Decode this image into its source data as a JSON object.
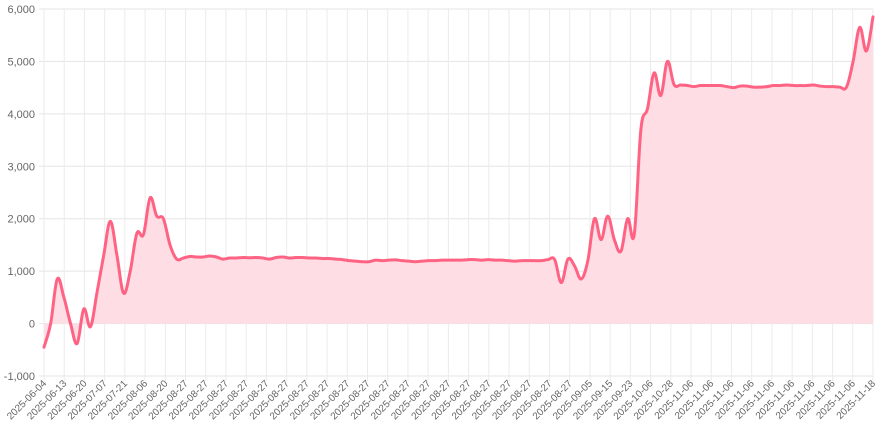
{
  "chart_data": {
    "type": "area",
    "title": "",
    "xlabel": "",
    "ylabel": "",
    "ylim": [
      -1000,
      6000
    ],
    "yticks": [
      -1000,
      0,
      1000,
      2000,
      3000,
      4000,
      5000,
      6000
    ],
    "ytick_labels": [
      "-1,000",
      "0",
      "1,000",
      "2,000",
      "3,000",
      "4,000",
      "5,000",
      "6,000"
    ],
    "grid": true,
    "legend": "none",
    "x_labels": [
      "2025-06-04",
      "2025-06-13",
      "2025-06-20",
      "2025-07-07",
      "2025-07-21",
      "2025-08-06",
      "2025-08-20",
      "2025-08-27",
      "2025-08-27",
      "2025-08-27",
      "2025-08-27",
      "2025-08-27",
      "2025-08-27",
      "2025-08-27",
      "2025-08-27",
      "2025-08-27",
      "2025-08-27",
      "2025-08-27",
      "2025-08-27",
      "2025-08-27",
      "2025-08-27",
      "2025-08-27",
      "2025-08-27",
      "2025-08-27",
      "2025-08-27",
      "2025-08-27",
      "2025-08-27",
      "2025-09-05",
      "2025-09-15",
      "2025-09-23",
      "2025-10-06",
      "2025-10-28",
      "2025-11-06",
      "2025-11-06",
      "2025-11-06",
      "2025-11-06",
      "2025-11-06",
      "2025-11-06",
      "2025-11-06",
      "2025-11-06",
      "2025-11-06",
      "2025-11-18"
    ],
    "series": [
      {
        "color": "#ff6384",
        "fill": "#ffdde4",
        "values": [
          -450,
          0,
          850,
          500,
          0,
          -380,
          280,
          -60,
          600,
          1300,
          1950,
          1300,
          580,
          1000,
          1720,
          1700,
          2400,
          2050,
          2000,
          1500,
          1230,
          1250,
          1280,
          1270,
          1270,
          1290,
          1270,
          1230,
          1250,
          1250,
          1260,
          1255,
          1260,
          1250,
          1230,
          1260,
          1270,
          1250,
          1260,
          1260,
          1250,
          1250,
          1240,
          1240,
          1230,
          1220,
          1200,
          1190,
          1180,
          1180,
          1210,
          1200,
          1210,
          1215,
          1200,
          1190,
          1180,
          1190,
          1200,
          1200,
          1210,
          1210,
          1210,
          1210,
          1220,
          1220,
          1210,
          1220,
          1210,
          1210,
          1200,
          1190,
          1200,
          1200,
          1200,
          1200,
          1220,
          1220,
          780,
          1230,
          1100,
          850,
          1200,
          2000,
          1600,
          2050,
          1600,
          1380,
          2000,
          1700,
          3700,
          4100,
          4780,
          4350,
          5000,
          4560,
          4550,
          4540,
          4520,
          4540,
          4540,
          4540,
          4540,
          4520,
          4500,
          4530,
          4530,
          4510,
          4510,
          4520,
          4540,
          4540,
          4550,
          4540,
          4540,
          4540,
          4550,
          4530,
          4520,
          4520,
          4510,
          4510,
          5000,
          5650,
          5200,
          5850
        ]
      }
    ]
  }
}
